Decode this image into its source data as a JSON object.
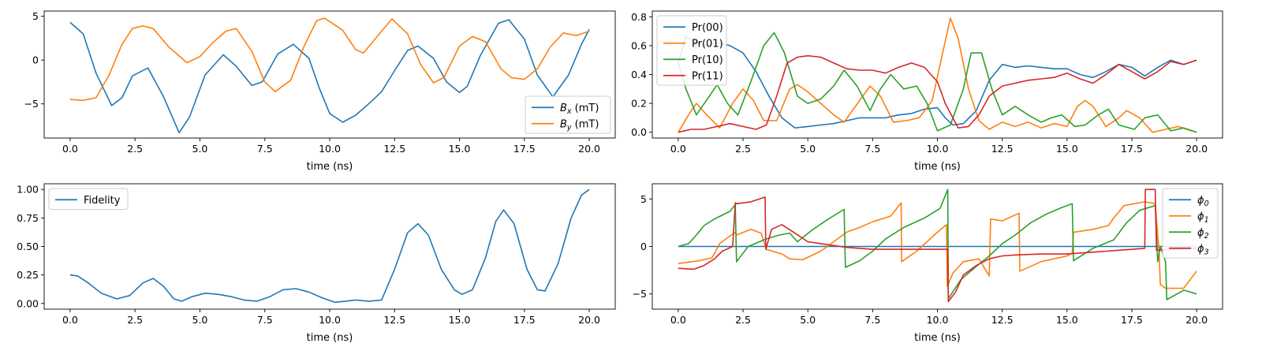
{
  "chart_data": [
    {
      "type": "line",
      "xlabel": "time (ns)",
      "xlim": [
        -1,
        21
      ],
      "ylim": [
        -8.9,
        5.6
      ],
      "xticks": [
        "0.0",
        "2.5",
        "5.0",
        "7.5",
        "10.0",
        "12.5",
        "15.0",
        "17.5",
        "20.0"
      ],
      "yticks": [
        "5",
        "0",
        "−5"
      ],
      "legend": "lower-right",
      "series": [
        {
          "name": "B_x (mT)",
          "label_main": "B",
          "label_sub": "x",
          "label_tail": " (mT)",
          "color": "#1f77b4",
          "x": [
            0,
            0.5,
            1,
            1.6,
            2,
            2.4,
            3,
            3.6,
            4.2,
            4.6,
            5.2,
            5.9,
            6.4,
            7,
            7.4,
            8,
            8.6,
            9.2,
            9.6,
            10,
            10.5,
            11,
            11.5,
            12,
            12.5,
            13,
            13.4,
            14,
            14.5,
            15,
            15.3,
            15.8,
            16.5,
            16.9,
            17.5,
            18,
            18.6,
            19.2,
            19.7,
            20
          ],
          "y": [
            4.3,
            3,
            -1.5,
            -5.2,
            -4.3,
            -1.8,
            -0.9,
            -4.2,
            -8.3,
            -6.5,
            -1.7,
            0.6,
            -0.7,
            -2.9,
            -2.5,
            0.7,
            1.8,
            0.2,
            -3.2,
            -6.1,
            -7.1,
            -6.3,
            -5,
            -3.6,
            -1.2,
            1.1,
            1.6,
            0.2,
            -2.5,
            -3.7,
            -3,
            0.5,
            4.2,
            4.6,
            2.4,
            -1.7,
            -4.2,
            -1.7,
            1.8,
            3.5
          ]
        },
        {
          "name": "B_y (mT)",
          "label_main": "B",
          "label_sub": "y",
          "label_tail": " (mT)",
          "color": "#ff7f0e",
          "x": [
            0,
            0.5,
            1,
            1.5,
            2,
            2.4,
            2.8,
            3.2,
            3.8,
            4.5,
            5,
            5.5,
            6,
            6.4,
            7,
            7.5,
            7.9,
            8.5,
            9,
            9.5,
            9.8,
            10.5,
            11,
            11.3,
            12,
            12.4,
            13,
            13.5,
            14,
            14.4,
            15,
            15.5,
            16,
            16.6,
            17,
            17.5,
            18,
            18.5,
            19,
            19.5,
            20
          ],
          "y": [
            -4.5,
            -4.6,
            -4.3,
            -1.7,
            1.8,
            3.6,
            3.9,
            3.6,
            1.5,
            -0.3,
            0.4,
            2,
            3.3,
            3.6,
            1,
            -2.5,
            -3.6,
            -2.3,
            1.5,
            4.5,
            4.8,
            3.4,
            1.2,
            0.8,
            3.3,
            4.7,
            3,
            -0.5,
            -2.6,
            -2,
            1.6,
            2.7,
            2.1,
            -1,
            -2,
            -2.2,
            -1,
            1.5,
            3.1,
            2.8,
            3.3
          ]
        }
      ]
    },
    {
      "type": "line",
      "xlabel": "time (ns)",
      "xlim": [
        -1,
        21
      ],
      "ylim": [
        -0.04,
        0.84
      ],
      "xticks": [
        "0.0",
        "2.5",
        "5.0",
        "7.5",
        "10.0",
        "12.5",
        "15.0",
        "17.5",
        "20.0"
      ],
      "yticks": [
        "0.8",
        "0.6",
        "0.4",
        "0.2",
        "0.0"
      ],
      "legend": "upper-left",
      "series": [
        {
          "name": "Pr(00)",
          "color": "#1f77b4",
          "x": [
            0,
            0.3,
            0.6,
            1,
            1.5,
            2,
            2.5,
            3,
            3.5,
            4,
            4.5,
            5,
            5.5,
            6,
            6.5,
            7,
            7.5,
            8,
            8.5,
            9,
            9.5,
            10,
            10.3,
            10.6,
            11,
            11.5,
            12,
            12.5,
            13,
            13.5,
            14,
            14.5,
            15,
            15.5,
            16,
            16.5,
            17,
            17.5,
            18,
            18.5,
            19,
            19.5,
            20
          ],
          "y": [
            0.48,
            0.66,
            0.63,
            0.6,
            0.62,
            0.6,
            0.55,
            0.42,
            0.25,
            0.1,
            0.03,
            0.04,
            0.05,
            0.06,
            0.08,
            0.1,
            0.1,
            0.1,
            0.12,
            0.13,
            0.16,
            0.17,
            0.1,
            0.05,
            0.06,
            0.15,
            0.36,
            0.47,
            0.45,
            0.46,
            0.45,
            0.44,
            0.44,
            0.4,
            0.38,
            0.42,
            0.47,
            0.45,
            0.39,
            0.45,
            0.5,
            0.47,
            0.5
          ]
        },
        {
          "name": "Pr(01)",
          "color": "#ff7f0e",
          "x": [
            0,
            0.4,
            0.7,
            1.1,
            1.6,
            2.1,
            2.5,
            2.9,
            3.3,
            3.8,
            4.3,
            4.6,
            5,
            5.5,
            6,
            6.4,
            7,
            7.4,
            7.8,
            8.3,
            8.8,
            9.3,
            9.8,
            10.2,
            10.5,
            10.8,
            11.2,
            11.6,
            12,
            12.5,
            13,
            13.5,
            14,
            14.5,
            15,
            15.4,
            15.7,
            16,
            16.5,
            17,
            17.3,
            17.8,
            18.3,
            18.8,
            19.3,
            19.8,
            20
          ],
          "y": [
            0,
            0.12,
            0.2,
            0.12,
            0.03,
            0.2,
            0.3,
            0.22,
            0.08,
            0.08,
            0.3,
            0.33,
            0.28,
            0.2,
            0.12,
            0.07,
            0.22,
            0.32,
            0.25,
            0.07,
            0.08,
            0.1,
            0.22,
            0.55,
            0.79,
            0.65,
            0.3,
            0.08,
            0.02,
            0.07,
            0.04,
            0.07,
            0.03,
            0.06,
            0.04,
            0.18,
            0.22,
            0.18,
            0.04,
            0.1,
            0.15,
            0.1,
            0,
            0.02,
            0.04,
            0.01,
            0
          ]
        },
        {
          "name": "Pr(10)",
          "color": "#2ca02c",
          "x": [
            0,
            0.3,
            0.7,
            1.2,
            1.5,
            1.9,
            2.3,
            2.8,
            3.3,
            3.7,
            4.1,
            4.6,
            5,
            5.5,
            6,
            6.4,
            6.9,
            7.4,
            7.8,
            8.2,
            8.7,
            9.2,
            9.6,
            10,
            10.5,
            11,
            11.3,
            11.7,
            12.1,
            12.5,
            13,
            13.5,
            14,
            14.4,
            14.8,
            15.3,
            15.7,
            16.2,
            16.6,
            17,
            17.6,
            18,
            18.5,
            19,
            19.5,
            20
          ],
          "y": [
            0.48,
            0.3,
            0.12,
            0.25,
            0.33,
            0.2,
            0.12,
            0.35,
            0.6,
            0.69,
            0.55,
            0.25,
            0.2,
            0.23,
            0.32,
            0.43,
            0.32,
            0.15,
            0.3,
            0.4,
            0.3,
            0.32,
            0.2,
            0.01,
            0.05,
            0.3,
            0.55,
            0.55,
            0.3,
            0.12,
            0.18,
            0.12,
            0.07,
            0.1,
            0.12,
            0.04,
            0.05,
            0.12,
            0.16,
            0.05,
            0.02,
            0.1,
            0.12,
            0.01,
            0.03,
            0
          ]
        },
        {
          "name": "Pr(11)",
          "color": "#d62728",
          "x": [
            0,
            0.5,
            1,
            1.5,
            2,
            2.5,
            3,
            3.4,
            3.8,
            4.2,
            4.6,
            5,
            5.5,
            6,
            6.5,
            7,
            7.5,
            8,
            8.5,
            9,
            9.5,
            10,
            10.3,
            10.8,
            11.2,
            11.6,
            12,
            12.5,
            13,
            13.5,
            14,
            14.5,
            15,
            15.5,
            16,
            16.5,
            17,
            17.5,
            18,
            18.5,
            19,
            19.5,
            20
          ],
          "y": [
            0,
            0.02,
            0.02,
            0.04,
            0.06,
            0.04,
            0.02,
            0.05,
            0.25,
            0.48,
            0.52,
            0.53,
            0.52,
            0.48,
            0.44,
            0.43,
            0.43,
            0.41,
            0.45,
            0.48,
            0.45,
            0.35,
            0.2,
            0.03,
            0.04,
            0.12,
            0.25,
            0.32,
            0.34,
            0.36,
            0.37,
            0.38,
            0.41,
            0.37,
            0.34,
            0.4,
            0.47,
            0.42,
            0.37,
            0.42,
            0.49,
            0.47,
            0.5
          ]
        }
      ]
    },
    {
      "type": "line",
      "xlabel": "time (ns)",
      "xlim": [
        -1,
        21
      ],
      "ylim": [
        -0.05,
        1.05
      ],
      "xticks": [
        "0.0",
        "2.5",
        "5.0",
        "7.5",
        "10.0",
        "12.5",
        "15.0",
        "17.5",
        "20.0"
      ],
      "yticks": [
        "1.00",
        "0.75",
        "0.50",
        "0.25",
        "0.00"
      ],
      "legend": "upper-left",
      "series": [
        {
          "name": "Fidelity",
          "color": "#1f77b4",
          "x": [
            0,
            0.3,
            0.7,
            1.2,
            1.8,
            2.3,
            2.8,
            3.2,
            3.6,
            4,
            4.3,
            4.7,
            5.2,
            5.7,
            6.2,
            6.7,
            7.2,
            7.7,
            8.2,
            8.7,
            9.2,
            9.7,
            10.2,
            10.6,
            11,
            11.5,
            12,
            12.5,
            13,
            13.4,
            13.8,
            14.3,
            14.8,
            15.1,
            15.5,
            16,
            16.4,
            16.7,
            17.1,
            17.6,
            18,
            18.3,
            18.8,
            19.3,
            19.7,
            20
          ],
          "y": [
            0.25,
            0.24,
            0.18,
            0.09,
            0.04,
            0.07,
            0.18,
            0.22,
            0.15,
            0.04,
            0.02,
            0.06,
            0.09,
            0.08,
            0.06,
            0.03,
            0.02,
            0.06,
            0.12,
            0.13,
            0.1,
            0.05,
            0.01,
            0.02,
            0.03,
            0.02,
            0.03,
            0.3,
            0.62,
            0.7,
            0.6,
            0.3,
            0.12,
            0.08,
            0.12,
            0.4,
            0.72,
            0.82,
            0.7,
            0.3,
            0.12,
            0.11,
            0.35,
            0.75,
            0.95,
            1
          ]
        }
      ]
    },
    {
      "type": "line",
      "xlabel": "time (ns)",
      "xlim": [
        -1,
        21
      ],
      "ylim": [
        -6.6,
        6.6
      ],
      "xticks": [
        "0.0",
        "2.5",
        "5.0",
        "7.5",
        "10.0",
        "12.5",
        "15.0",
        "17.5",
        "20.0"
      ],
      "yticks": [
        "5",
        "0",
        "−5"
      ],
      "legend": "upper-right",
      "series": [
        {
          "name": "phi_0",
          "label_main": "ϕ",
          "label_sub": "0",
          "label_tail": "",
          "color": "#1f77b4",
          "x": [
            0,
            20
          ],
          "y": [
            0,
            0
          ]
        },
        {
          "name": "phi_1",
          "label_main": "ϕ",
          "label_sub": "1",
          "label_tail": "",
          "color": "#ff7f0e",
          "x": [
            0,
            0.8,
            1.3,
            1.6,
            2.2,
            2.25,
            2.8,
            3.2,
            3.4,
            4,
            4.3,
            4.8,
            5.5,
            6,
            6.5,
            7,
            7.5,
            8.2,
            8.6,
            8.62,
            9.2,
            10,
            10.35,
            10.38,
            10.6,
            11,
            11.6,
            12,
            12.05,
            12.5,
            13.15,
            13.18,
            14,
            15,
            15.2,
            15.25,
            16,
            16.6,
            16.8,
            17.2,
            18,
            18.4,
            18.55,
            18.6,
            18.8,
            19.5,
            20
          ],
          "y": [
            -1.8,
            -1.5,
            -1.2,
            0.3,
            1.5,
            1.2,
            1.8,
            1.4,
            -0.3,
            -0.8,
            -1.3,
            -1.4,
            -0.5,
            0.5,
            1.5,
            2,
            2.6,
            3.2,
            4.6,
            -1.6,
            -0.5,
            1.5,
            2.3,
            -4.2,
            -2.8,
            -1.6,
            -1.3,
            -3.1,
            2.9,
            2.7,
            3.5,
            -2.6,
            -1.6,
            -1,
            -0.7,
            1.5,
            1.8,
            2.2,
            3,
            4.3,
            4.7,
            4.5,
            -0.5,
            -4,
            -4.4,
            -4.4,
            -2.6
          ]
        },
        {
          "name": "phi_2",
          "label_main": "ϕ",
          "label_sub": "2",
          "label_tail": "",
          "color": "#2ca02c",
          "x": [
            0,
            0.4,
            0.7,
            1,
            1.4,
            2,
            2.2,
            2.25,
            2.7,
            3.4,
            3.9,
            4.3,
            4.6,
            5.2,
            5.8,
            6.4,
            6.45,
            7,
            7.5,
            8,
            8.7,
            9.5,
            10.1,
            10.4,
            10.42,
            10.9,
            11.5,
            12,
            12.5,
            13,
            13.6,
            14.2,
            14.8,
            15.2,
            15.25,
            16,
            16.8,
            17.3,
            17.8,
            18.4,
            18.5,
            18.6,
            18.8,
            18.85,
            19.5,
            20
          ],
          "y": [
            0,
            0.3,
            1.2,
            2.2,
            2.9,
            3.7,
            4.4,
            -1.6,
            0,
            0.8,
            1.2,
            1.4,
            0.5,
            1.8,
            2.9,
            3.9,
            -2.2,
            -1.5,
            -0.5,
            0.8,
            2,
            3,
            4,
            6,
            -5.5,
            -3.5,
            -2.1,
            -1,
            0.3,
            1.2,
            2.5,
            3.4,
            4.1,
            4.5,
            -1.5,
            -0.2,
            0.7,
            2.5,
            3.8,
            4.3,
            -1.6,
            0,
            -1.6,
            -5.6,
            -4.6,
            -5
          ]
        },
        {
          "name": "phi_3",
          "label_main": "ϕ",
          "label_sub": "3",
          "label_tail": "",
          "color": "#d62728",
          "x": [
            0,
            0.6,
            1,
            1.4,
            1.7,
            2.1,
            2.2,
            2.25,
            2.8,
            3.35,
            3.38,
            3.6,
            4,
            4.5,
            5,
            5.5,
            6,
            6.5,
            7,
            7.5,
            8,
            9,
            10,
            10.4,
            10.42,
            10.7,
            11,
            11.5,
            12,
            12.5,
            13,
            14,
            15,
            16,
            17,
            18,
            18.02,
            18.4,
            18.45,
            19,
            20
          ],
          "y": [
            -2.3,
            -2.4,
            -2,
            -1.3,
            -0.5,
            0,
            4.6,
            4.5,
            4.7,
            5.2,
            -0.3,
            1.8,
            2.3,
            1.4,
            0.5,
            0.3,
            0.1,
            -0.1,
            -0.2,
            -0.3,
            -0.3,
            -0.3,
            -0.3,
            -0.3,
            -5.8,
            -4.8,
            -3,
            -2,
            -1.3,
            -1,
            -0.9,
            -0.8,
            -0.8,
            -0.6,
            -0.4,
            -0.2,
            6,
            6,
            -0.4,
            -0.3,
            -0.2
          ]
        }
      ]
    }
  ]
}
